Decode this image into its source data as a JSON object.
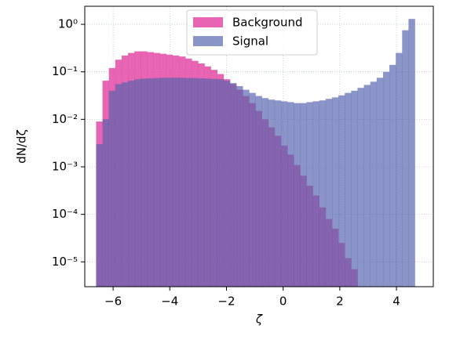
{
  "chart_data": {
    "type": "histogram",
    "x_label": "ζ",
    "y_label": "dN/dζ",
    "log_y": true,
    "grid": true,
    "legend": "upper center",
    "bins": [
      -6.6,
      -6.375,
      -6.15,
      -5.925,
      -5.7,
      -5.475,
      -5.25,
      -5.025,
      -4.8,
      -4.575,
      -4.35,
      -4.125,
      -3.9,
      -3.675,
      -3.45,
      -3.225,
      -3.0,
      -2.775,
      -2.55,
      -2.325,
      -2.1,
      -1.875,
      -1.65,
      -1.425,
      -1.2,
      -0.975,
      -0.75,
      -0.525,
      -0.3,
      -0.075,
      0.15,
      0.375,
      0.6,
      0.825,
      1.05,
      1.275,
      1.5,
      1.725,
      1.95,
      2.175,
      2.4,
      2.625,
      2.85,
      3.075,
      3.3,
      3.525,
      3.75,
      3.975,
      4.2,
      4.425,
      4.65
    ],
    "series": [
      {
        "name": "Background",
        "color": "#e23a9f",
        "values": [
          0.009,
          0.065,
          0.12,
          0.18,
          0.22,
          0.25,
          0.27,
          0.27,
          0.26,
          0.25,
          0.24,
          0.23,
          0.22,
          0.21,
          0.19,
          0.17,
          0.15,
          0.13,
          0.11,
          0.09,
          0.07,
          0.055,
          0.042,
          0.031,
          0.022,
          0.015,
          0.01,
          0.0068,
          0.0045,
          0.0028,
          0.0018,
          0.0011,
          0.00065,
          0.0004,
          0.00025,
          0.00014,
          8e-05,
          5e-05,
          2.5e-05,
          1.2e-05,
          7e-06,
          0,
          0,
          0,
          0,
          0,
          0,
          0,
          0,
          0
        ]
      },
      {
        "name": "Signal",
        "color": "#5563ad",
        "values": [
          0.003,
          0.01,
          0.04,
          0.055,
          0.06,
          0.065,
          0.07,
          0.072,
          0.073,
          0.074,
          0.075,
          0.075,
          0.075,
          0.075,
          0.074,
          0.074,
          0.073,
          0.072,
          0.071,
          0.07,
          0.065,
          0.058,
          0.05,
          0.042,
          0.036,
          0.031,
          0.028,
          0.026,
          0.025,
          0.024,
          0.023,
          0.022,
          0.022,
          0.023,
          0.024,
          0.025,
          0.027,
          0.029,
          0.032,
          0.036,
          0.04,
          0.046,
          0.053,
          0.062,
          0.075,
          0.1,
          0.14,
          0.25,
          0.75,
          1.3
        ]
      }
    ],
    "xlim": [
      -7,
      5.3
    ],
    "xticks": [
      {
        "value": -6,
        "label": "−6"
      },
      {
        "value": -4,
        "label": "−4"
      },
      {
        "value": -2,
        "label": "−2"
      },
      0,
      2,
      4
    ],
    "ylim": [
      3e-06,
      2.4
    ],
    "yticks": [
      {
        "value": 1e-05,
        "label": "10⁻⁵"
      },
      {
        "value": 0.0001,
        "label": "10⁻⁴"
      },
      {
        "value": 0.001,
        "label": "10⁻³"
      },
      {
        "value": 0.01,
        "label": "10⁻²"
      },
      {
        "value": 0.1,
        "label": "10⁻¹"
      },
      {
        "value": 1,
        "label": "10⁰"
      }
    ]
  }
}
